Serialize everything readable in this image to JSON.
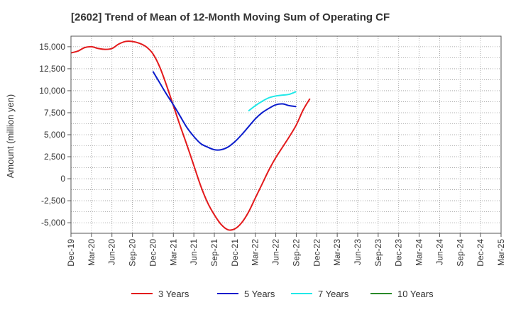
{
  "chart_data": {
    "type": "line",
    "title": "[2602]  Trend of Mean of 12-Month Moving Sum of Operating CF",
    "xlabel": "",
    "ylabel": "Amount (million yen)",
    "x_ticks": [
      "Dec-19",
      "Mar-20",
      "Jun-20",
      "Sep-20",
      "Dec-20",
      "Mar-21",
      "Jun-21",
      "Sep-21",
      "Dec-21",
      "Mar-22",
      "Jun-22",
      "Sep-22",
      "Dec-22",
      "Mar-23",
      "Jun-23",
      "Sep-23",
      "Dec-23",
      "Mar-24",
      "Jun-24",
      "Sep-24",
      "Dec-24",
      "Mar-25"
    ],
    "y_ticks": [
      -5000,
      -2500,
      0,
      2500,
      5000,
      7500,
      10000,
      12500,
      15000
    ],
    "y_tick_labels": [
      "-5,000",
      "-2,500",
      "0",
      "2,500",
      "5,000",
      "7,500",
      "10,000",
      "12,500",
      "15,000"
    ],
    "ylim": [
      -6200,
      16200
    ],
    "grid": true,
    "legend_position": "bottom",
    "series": [
      {
        "name": "3 Years",
        "color": "#e31a1c",
        "points": [
          [
            0,
            14300
          ],
          [
            1,
            14500
          ],
          [
            2,
            14900
          ],
          [
            3,
            15000
          ],
          [
            4,
            14800
          ],
          [
            5,
            14700
          ],
          [
            6,
            14800
          ],
          [
            7,
            15300
          ],
          [
            8,
            15600
          ],
          [
            9,
            15600
          ],
          [
            10,
            15400
          ],
          [
            11,
            15000
          ],
          [
            12,
            14200
          ],
          [
            13,
            12700
          ],
          [
            14,
            10600
          ],
          [
            15,
            8300
          ],
          [
            16,
            6000
          ],
          [
            17,
            3800
          ],
          [
            18,
            1500
          ],
          [
            19,
            -800
          ],
          [
            20,
            -2700
          ],
          [
            21,
            -4100
          ],
          [
            22,
            -5200
          ],
          [
            23,
            -5800
          ],
          [
            24,
            -5700
          ],
          [
            25,
            -5000
          ],
          [
            26,
            -3800
          ],
          [
            27,
            -2200
          ],
          [
            28,
            -600
          ],
          [
            29,
            1000
          ],
          [
            30,
            2400
          ],
          [
            31,
            3600
          ],
          [
            32,
            4800
          ],
          [
            33,
            6100
          ],
          [
            34,
            7800
          ],
          [
            35,
            9100
          ]
        ]
      },
      {
        "name": "5 Years",
        "color": "#0a1ccc",
        "points": [
          [
            12,
            12200
          ],
          [
            13,
            10900
          ],
          [
            14,
            9600
          ],
          [
            15,
            8400
          ],
          [
            16,
            7100
          ],
          [
            17,
            5800
          ],
          [
            18,
            4800
          ],
          [
            19,
            4000
          ],
          [
            20,
            3600
          ],
          [
            21,
            3300
          ],
          [
            22,
            3300
          ],
          [
            23,
            3600
          ],
          [
            24,
            4200
          ],
          [
            25,
            5000
          ],
          [
            26,
            5900
          ],
          [
            27,
            6800
          ],
          [
            28,
            7500
          ],
          [
            29,
            8000
          ],
          [
            30,
            8400
          ],
          [
            31,
            8500
          ],
          [
            32,
            8300
          ],
          [
            33,
            8200
          ]
        ]
      },
      {
        "name": "7 Years",
        "color": "#22e8e8",
        "points": [
          [
            26,
            7700
          ],
          [
            27,
            8300
          ],
          [
            28,
            8800
          ],
          [
            29,
            9200
          ],
          [
            30,
            9400
          ],
          [
            31,
            9500
          ],
          [
            32,
            9600
          ],
          [
            33,
            9900
          ]
        ]
      },
      {
        "name": "10 Years",
        "color": "#2a8a2a",
        "points": []
      }
    ]
  }
}
